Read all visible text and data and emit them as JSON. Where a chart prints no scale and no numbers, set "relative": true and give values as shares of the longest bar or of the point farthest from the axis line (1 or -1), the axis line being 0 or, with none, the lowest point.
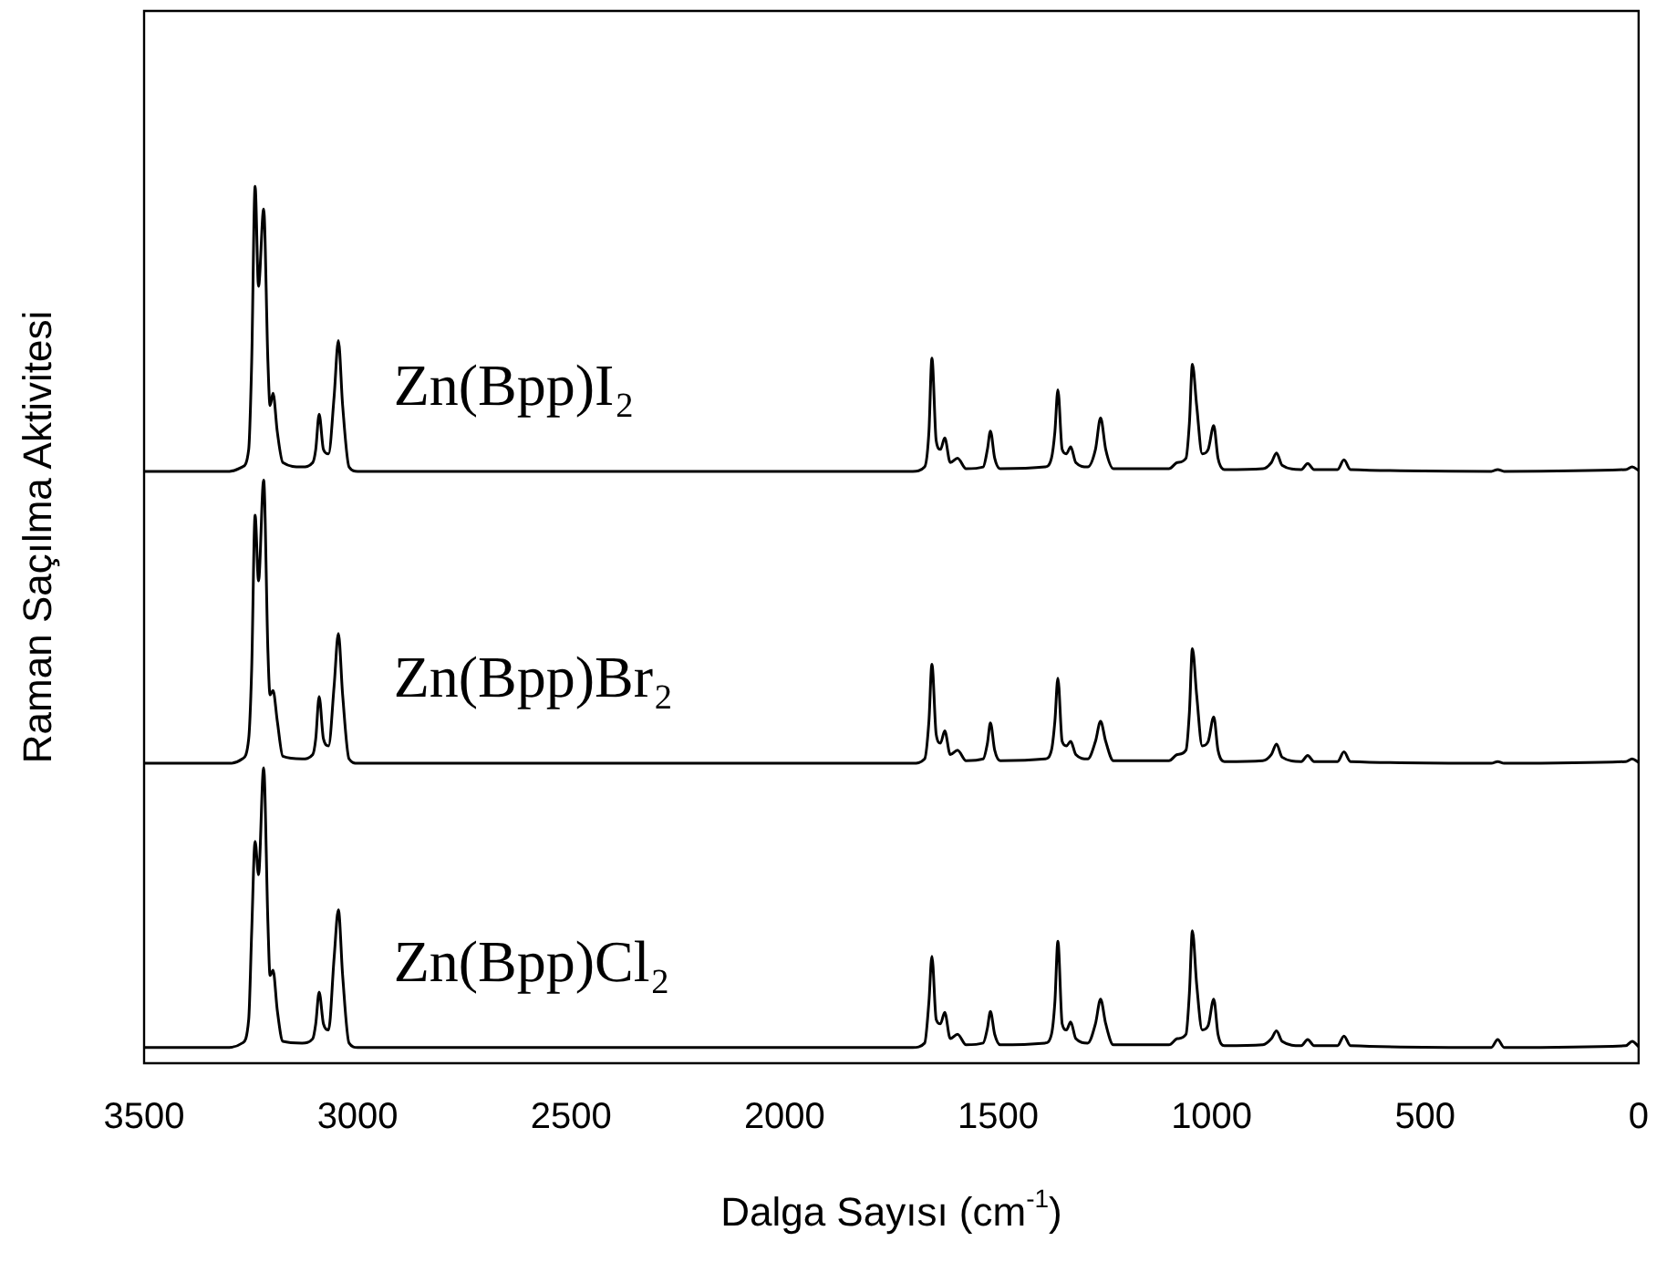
{
  "chart_data": {
    "type": "line",
    "relative": true,
    "xlabel": "Dalga Sayısı (cm$^{-1}$)",
    "ylabel": "Raman Saçılma Aktivitesi",
    "xlim": [
      3500,
      0
    ],
    "xticks": [
      3500,
      3000,
      2500,
      2000,
      1500,
      1000,
      500,
      0
    ],
    "grid": false,
    "legend": false,
    "marker": "none",
    "line_style": "solid",
    "x": [
      3500,
      3300,
      3270,
      3255,
      3248,
      3240,
      3232,
      3220,
      3210,
      3205,
      3198,
      3188,
      3175,
      3130,
      3105,
      3098,
      3090,
      3080,
      3068,
      3055,
      3045,
      3035,
      3020,
      3000,
      1700,
      1672,
      1662,
      1655,
      1645,
      1635,
      1625,
      1612,
      1595,
      1575,
      1535,
      1525,
      1518,
      1508,
      1495,
      1390,
      1375,
      1367,
      1360,
      1350,
      1340,
      1330,
      1318,
      1290,
      1272,
      1260,
      1248,
      1230,
      1100,
      1080,
      1060,
      1052,
      1045,
      1035,
      1022,
      1008,
      995,
      985,
      970,
      880,
      860,
      848,
      835,
      790,
      775,
      760,
      705,
      690,
      675,
      345,
      330,
      315,
      30,
      15,
      0
    ],
    "series": [
      {
        "name": "Zn(Bpp)I₂",
        "color": "#000000",
        "values": [
          0.675,
          0.675,
          0.68,
          0.7,
          0.8,
          1.0,
          0.886,
          0.974,
          0.8,
          0.75,
          0.764,
          0.72,
          0.685,
          0.68,
          0.685,
          0.7,
          0.74,
          0.7,
          0.695,
          0.76,
          0.824,
          0.75,
          0.68,
          0.675,
          0.675,
          0.68,
          0.72,
          0.804,
          0.71,
          0.7,
          0.713,
          0.685,
          0.69,
          0.678,
          0.68,
          0.7,
          0.721,
          0.69,
          0.678,
          0.68,
          0.69,
          0.72,
          0.768,
          0.7,
          0.695,
          0.703,
          0.685,
          0.68,
          0.7,
          0.736,
          0.7,
          0.678,
          0.678,
          0.685,
          0.69,
          0.73,
          0.797,
          0.75,
          0.695,
          0.7,
          0.727,
          0.69,
          0.677,
          0.678,
          0.685,
          0.696,
          0.682,
          0.677,
          0.684,
          0.677,
          0.677,
          0.688,
          0.677,
          0.675,
          0.677,
          0.675,
          0.677,
          0.68,
          0.676
        ]
      },
      {
        "name": "Zn(Bpp)Br₂",
        "color": "#000000",
        "values": [
          0.342,
          0.342,
          0.347,
          0.37,
          0.45,
          0.625,
          0.55,
          0.665,
          0.47,
          0.42,
          0.425,
          0.39,
          0.35,
          0.347,
          0.352,
          0.37,
          0.418,
          0.37,
          0.362,
          0.43,
          0.49,
          0.42,
          0.347,
          0.342,
          0.342,
          0.347,
          0.39,
          0.455,
          0.375,
          0.365,
          0.379,
          0.352,
          0.357,
          0.345,
          0.347,
          0.365,
          0.388,
          0.357,
          0.345,
          0.347,
          0.357,
          0.39,
          0.439,
          0.367,
          0.362,
          0.367,
          0.352,
          0.347,
          0.367,
          0.39,
          0.367,
          0.345,
          0.345,
          0.352,
          0.357,
          0.4,
          0.473,
          0.42,
          0.362,
          0.367,
          0.395,
          0.357,
          0.344,
          0.345,
          0.352,
          0.364,
          0.349,
          0.344,
          0.351,
          0.344,
          0.344,
          0.355,
          0.344,
          0.342,
          0.344,
          0.342,
          0.344,
          0.347,
          0.343
        ]
      },
      {
        "name": "Zn(Bpp)Cl₂",
        "color": "#000000",
        "values": [
          0.018,
          0.018,
          0.023,
          0.05,
          0.15,
          0.253,
          0.215,
          0.337,
          0.16,
          0.1,
          0.106,
          0.06,
          0.025,
          0.023,
          0.028,
          0.045,
          0.081,
          0.045,
          0.038,
          0.12,
          0.175,
          0.1,
          0.023,
          0.018,
          0.018,
          0.023,
          0.07,
          0.122,
          0.05,
          0.045,
          0.058,
          0.028,
          0.033,
          0.021,
          0.023,
          0.04,
          0.059,
          0.033,
          0.021,
          0.023,
          0.033,
          0.07,
          0.139,
          0.045,
          0.038,
          0.047,
          0.028,
          0.023,
          0.045,
          0.073,
          0.045,
          0.021,
          0.021,
          0.028,
          0.033,
          0.08,
          0.151,
          0.09,
          0.038,
          0.043,
          0.073,
          0.033,
          0.02,
          0.021,
          0.028,
          0.037,
          0.025,
          0.02,
          0.027,
          0.02,
          0.02,
          0.031,
          0.02,
          0.018,
          0.027,
          0.018,
          0.02,
          0.025,
          0.019
        ]
      }
    ]
  }
}
